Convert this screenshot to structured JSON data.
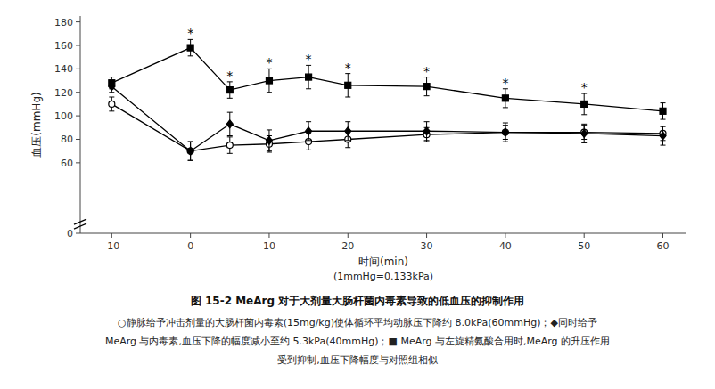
{
  "chart_data": {
    "type": "line",
    "title": "图 15-2   MeArg 对于大剂量大肠杆菌内毒素导致的低血压的抑制作用",
    "xlabel": "时间(min)",
    "subtitle": "(1mmHg=0.133kPa)",
    "ylabel": "血压(mmHg)",
    "caption": [
      "○静脉给予冲击剂量的大肠杆菌内毒素(15mg/kg)使体循环平均动脉压下降约 8.0kPa(60mmHg)；◆同时给予",
      "MeArg 与内毒素,血压下降的幅度减小至约 5.3kPa(40mmHg)；■ MeArg 与左旋精氨酸合用时,MeArg 的升压作用",
      "受到抑制,血压下降幅度与对照组相似"
    ],
    "x": [
      -10,
      0,
      5,
      10,
      15,
      20,
      30,
      40,
      50,
      60
    ],
    "series": [
      {
        "color": "#000000",
        "marker": "circle-open",
        "line_style": "solid",
        "values": [
          110,
          70,
          75,
          76,
          78,
          80,
          84,
          86,
          86,
          85
        ],
        "yerr": [
          6,
          8,
          7,
          7,
          7,
          7,
          6,
          6,
          6,
          6
        ]
      },
      {
        "color": "#000000",
        "marker": "diamond",
        "line_style": "solid",
        "values": [
          125,
          70,
          93,
          79,
          87,
          87,
          87,
          86,
          85,
          83
        ],
        "yerr": [
          5,
          8,
          10,
          9,
          8,
          8,
          8,
          8,
          8,
          8
        ]
      },
      {
        "color": "#000000",
        "marker": "square",
        "line_style": "solid",
        "values": [
          128,
          158,
          122,
          130,
          133,
          126,
          125,
          115,
          110,
          104
        ],
        "yerr": [
          5,
          7,
          7,
          10,
          10,
          10,
          8,
          8,
          9,
          7
        ]
      }
    ],
    "annotations": [
      {
        "text": "*",
        "x": 0
      },
      {
        "text": "*",
        "x": 5
      },
      {
        "text": "*",
        "x": 10
      },
      {
        "text": "*",
        "x": 15
      },
      {
        "text": "*",
        "x": 20
      },
      {
        "text": "*",
        "x": 30
      },
      {
        "text": "*",
        "x": 40
      },
      {
        "text": "*",
        "x": 50
      }
    ],
    "xlim": [
      -14,
      63
    ],
    "ylim": [
      0,
      185
    ],
    "xticks": [
      -10,
      0,
      10,
      20,
      30,
      40,
      50,
      60
    ],
    "yticks": [
      0,
      60,
      80,
      100,
      120,
      140,
      160,
      180
    ],
    "grid": false
  }
}
